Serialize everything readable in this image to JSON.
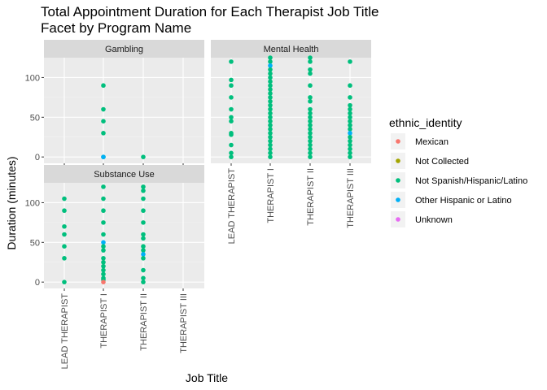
{
  "chart_data": {
    "type": "scatter",
    "title_line1": "Total Appointment Duration for Each Therapist Job Title",
    "title_line2": "Facet by Program Name",
    "xlabel": "Job Title",
    "ylabel": "Duration (minutes)",
    "categories": [
      "LEAD THERAPIST",
      "THERAPIST I",
      "THERAPIST II",
      "THERAPIST III"
    ],
    "y_ticks": [
      0,
      50,
      100
    ],
    "ylim": [
      -8,
      125
    ],
    "grid": true,
    "legend": {
      "title": "ethnic_identity",
      "placement": "right",
      "entries": [
        {
          "label": "Mexican",
          "color": "#F8766D"
        },
        {
          "label": "Not Collected",
          "color": "#A3A500"
        },
        {
          "label": "Not Spanish/Hispanic/Latino",
          "color": "#00BF7D"
        },
        {
          "label": "Other Hispanic or Latino",
          "color": "#00B0F6"
        },
        {
          "label": "Unknown",
          "color": "#E76BF3"
        }
      ]
    },
    "facets": [
      {
        "name": "Gambling",
        "points": [
          {
            "x": "THERAPIST I",
            "y": 90,
            "group": "Not Spanish/Hispanic/Latino"
          },
          {
            "x": "THERAPIST I",
            "y": 60,
            "group": "Not Spanish/Hispanic/Latino"
          },
          {
            "x": "THERAPIST I",
            "y": 45,
            "group": "Not Spanish/Hispanic/Latino"
          },
          {
            "x": "THERAPIST I",
            "y": 30,
            "group": "Not Spanish/Hispanic/Latino"
          },
          {
            "x": "THERAPIST I",
            "y": 0,
            "group": "Not Spanish/Hispanic/Latino"
          },
          {
            "x": "THERAPIST I",
            "y": 0,
            "group": "Other Hispanic or Latino"
          },
          {
            "x": "THERAPIST II",
            "y": 0,
            "group": "Not Spanish/Hispanic/Latino"
          }
        ]
      },
      {
        "name": "Mental Health",
        "points": [
          {
            "x": "LEAD THERAPIST",
            "y": 120,
            "group": "Not Spanish/Hispanic/Latino"
          },
          {
            "x": "LEAD THERAPIST",
            "y": 97,
            "group": "Not Spanish/Hispanic/Latino"
          },
          {
            "x": "LEAD THERAPIST",
            "y": 90,
            "group": "Not Spanish/Hispanic/Latino"
          },
          {
            "x": "LEAD THERAPIST",
            "y": 75,
            "group": "Not Spanish/Hispanic/Latino"
          },
          {
            "x": "LEAD THERAPIST",
            "y": 60,
            "group": "Not Spanish/Hispanic/Latino"
          },
          {
            "x": "LEAD THERAPIST",
            "y": 50,
            "group": "Not Spanish/Hispanic/Latino"
          },
          {
            "x": "LEAD THERAPIST",
            "y": 45,
            "group": "Not Spanish/Hispanic/Latino"
          },
          {
            "x": "LEAD THERAPIST",
            "y": 30,
            "group": "Not Spanish/Hispanic/Latino"
          },
          {
            "x": "LEAD THERAPIST",
            "y": 28,
            "group": "Not Spanish/Hispanic/Latino"
          },
          {
            "x": "LEAD THERAPIST",
            "y": 15,
            "group": "Not Spanish/Hispanic/Latino"
          },
          {
            "x": "LEAD THERAPIST",
            "y": 5,
            "group": "Not Spanish/Hispanic/Latino"
          },
          {
            "x": "LEAD THERAPIST",
            "y": 0,
            "group": "Not Spanish/Hispanic/Latino"
          },
          {
            "x": "THERAPIST I",
            "y": 125,
            "group": "Not Spanish/Hispanic/Latino"
          },
          {
            "x": "THERAPIST I",
            "y": 120,
            "group": "Not Spanish/Hispanic/Latino"
          },
          {
            "x": "THERAPIST I",
            "y": 115,
            "group": "Other Hispanic or Latino"
          },
          {
            "x": "THERAPIST I",
            "y": 110,
            "group": "Not Spanish/Hispanic/Latino"
          },
          {
            "x": "THERAPIST I",
            "y": 105,
            "group": "Not Spanish/Hispanic/Latino"
          },
          {
            "x": "THERAPIST I",
            "y": 100,
            "group": "Not Spanish/Hispanic/Latino"
          },
          {
            "x": "THERAPIST I",
            "y": 95,
            "group": "Not Spanish/Hispanic/Latino"
          },
          {
            "x": "THERAPIST I",
            "y": 90,
            "group": "Not Spanish/Hispanic/Latino"
          },
          {
            "x": "THERAPIST I",
            "y": 85,
            "group": "Not Spanish/Hispanic/Latino"
          },
          {
            "x": "THERAPIST I",
            "y": 80,
            "group": "Not Spanish/Hispanic/Latino"
          },
          {
            "x": "THERAPIST I",
            "y": 75,
            "group": "Not Spanish/Hispanic/Latino"
          },
          {
            "x": "THERAPIST I",
            "y": 70,
            "group": "Not Spanish/Hispanic/Latino"
          },
          {
            "x": "THERAPIST I",
            "y": 65,
            "group": "Not Spanish/Hispanic/Latino"
          },
          {
            "x": "THERAPIST I",
            "y": 60,
            "group": "Not Spanish/Hispanic/Latino"
          },
          {
            "x": "THERAPIST I",
            "y": 55,
            "group": "Not Spanish/Hispanic/Latino"
          },
          {
            "x": "THERAPIST I",
            "y": 50,
            "group": "Not Spanish/Hispanic/Latino"
          },
          {
            "x": "THERAPIST I",
            "y": 45,
            "group": "Not Spanish/Hispanic/Latino"
          },
          {
            "x": "THERAPIST I",
            "y": 40,
            "group": "Not Spanish/Hispanic/Latino"
          },
          {
            "x": "THERAPIST I",
            "y": 35,
            "group": "Not Spanish/Hispanic/Latino"
          },
          {
            "x": "THERAPIST I",
            "y": 30,
            "group": "Not Spanish/Hispanic/Latino"
          },
          {
            "x": "THERAPIST I",
            "y": 25,
            "group": "Not Spanish/Hispanic/Latino"
          },
          {
            "x": "THERAPIST I",
            "y": 20,
            "group": "Not Spanish/Hispanic/Latino"
          },
          {
            "x": "THERAPIST I",
            "y": 15,
            "group": "Not Spanish/Hispanic/Latino"
          },
          {
            "x": "THERAPIST I",
            "y": 10,
            "group": "Not Spanish/Hispanic/Latino"
          },
          {
            "x": "THERAPIST I",
            "y": 5,
            "group": "Not Spanish/Hispanic/Latino"
          },
          {
            "x": "THERAPIST I",
            "y": 0,
            "group": "Not Spanish/Hispanic/Latino"
          },
          {
            "x": "THERAPIST II",
            "y": 125,
            "group": "Not Spanish/Hispanic/Latino"
          },
          {
            "x": "THERAPIST II",
            "y": 120,
            "group": "Not Spanish/Hispanic/Latino"
          },
          {
            "x": "THERAPIST II",
            "y": 110,
            "group": "Not Spanish/Hispanic/Latino"
          },
          {
            "x": "THERAPIST II",
            "y": 105,
            "group": "Not Spanish/Hispanic/Latino"
          },
          {
            "x": "THERAPIST II",
            "y": 90,
            "group": "Not Spanish/Hispanic/Latino"
          },
          {
            "x": "THERAPIST II",
            "y": 75,
            "group": "Not Spanish/Hispanic/Latino"
          },
          {
            "x": "THERAPIST II",
            "y": 70,
            "group": "Not Spanish/Hispanic/Latino"
          },
          {
            "x": "THERAPIST II",
            "y": 60,
            "group": "Not Spanish/Hispanic/Latino"
          },
          {
            "x": "THERAPIST II",
            "y": 55,
            "group": "Not Spanish/Hispanic/Latino"
          },
          {
            "x": "THERAPIST II",
            "y": 50,
            "group": "Not Spanish/Hispanic/Latino"
          },
          {
            "x": "THERAPIST II",
            "y": 45,
            "group": "Not Spanish/Hispanic/Latino"
          },
          {
            "x": "THERAPIST II",
            "y": 40,
            "group": "Not Spanish/Hispanic/Latino"
          },
          {
            "x": "THERAPIST II",
            "y": 35,
            "group": "Not Spanish/Hispanic/Latino"
          },
          {
            "x": "THERAPIST II",
            "y": 30,
            "group": "Not Spanish/Hispanic/Latino"
          },
          {
            "x": "THERAPIST II",
            "y": 25,
            "group": "Not Spanish/Hispanic/Latino"
          },
          {
            "x": "THERAPIST II",
            "y": 20,
            "group": "Not Spanish/Hispanic/Latino"
          },
          {
            "x": "THERAPIST II",
            "y": 15,
            "group": "Not Spanish/Hispanic/Latino"
          },
          {
            "x": "THERAPIST II",
            "y": 10,
            "group": "Not Spanish/Hispanic/Latino"
          },
          {
            "x": "THERAPIST II",
            "y": 5,
            "group": "Not Spanish/Hispanic/Latino"
          },
          {
            "x": "THERAPIST II",
            "y": 0,
            "group": "Not Spanish/Hispanic/Latino"
          },
          {
            "x": "THERAPIST III",
            "y": 120,
            "group": "Not Spanish/Hispanic/Latino"
          },
          {
            "x": "THERAPIST III",
            "y": 90,
            "group": "Not Spanish/Hispanic/Latino"
          },
          {
            "x": "THERAPIST III",
            "y": 75,
            "group": "Not Spanish/Hispanic/Latino"
          },
          {
            "x": "THERAPIST III",
            "y": 65,
            "group": "Not Spanish/Hispanic/Latino"
          },
          {
            "x": "THERAPIST III",
            "y": 60,
            "group": "Not Spanish/Hispanic/Latino"
          },
          {
            "x": "THERAPIST III",
            "y": 55,
            "group": "Not Spanish/Hispanic/Latino"
          },
          {
            "x": "THERAPIST III",
            "y": 50,
            "group": "Not Spanish/Hispanic/Latino"
          },
          {
            "x": "THERAPIST III",
            "y": 45,
            "group": "Not Spanish/Hispanic/Latino"
          },
          {
            "x": "THERAPIST III",
            "y": 40,
            "group": "Not Spanish/Hispanic/Latino"
          },
          {
            "x": "THERAPIST III",
            "y": 35,
            "group": "Not Spanish/Hispanic/Latino"
          },
          {
            "x": "THERAPIST III",
            "y": 30,
            "group": "Other Hispanic or Latino"
          },
          {
            "x": "THERAPIST III",
            "y": 25,
            "group": "Not Spanish/Hispanic/Latino"
          },
          {
            "x": "THERAPIST III",
            "y": 20,
            "group": "Not Spanish/Hispanic/Latino"
          },
          {
            "x": "THERAPIST III",
            "y": 15,
            "group": "Not Spanish/Hispanic/Latino"
          },
          {
            "x": "THERAPIST III",
            "y": 10,
            "group": "Not Spanish/Hispanic/Latino"
          },
          {
            "x": "THERAPIST III",
            "y": 5,
            "group": "Not Spanish/Hispanic/Latino"
          },
          {
            "x": "THERAPIST III",
            "y": 0,
            "group": "Not Spanish/Hispanic/Latino"
          }
        ]
      },
      {
        "name": "Substance Use",
        "points": [
          {
            "x": "LEAD THERAPIST",
            "y": 105,
            "group": "Not Spanish/Hispanic/Latino"
          },
          {
            "x": "LEAD THERAPIST",
            "y": 90,
            "group": "Not Spanish/Hispanic/Latino"
          },
          {
            "x": "LEAD THERAPIST",
            "y": 70,
            "group": "Not Spanish/Hispanic/Latino"
          },
          {
            "x": "LEAD THERAPIST",
            "y": 60,
            "group": "Not Spanish/Hispanic/Latino"
          },
          {
            "x": "LEAD THERAPIST",
            "y": 45,
            "group": "Not Spanish/Hispanic/Latino"
          },
          {
            "x": "LEAD THERAPIST",
            "y": 30,
            "group": "Not Spanish/Hispanic/Latino"
          },
          {
            "x": "LEAD THERAPIST",
            "y": 0,
            "group": "Not Spanish/Hispanic/Latino"
          },
          {
            "x": "THERAPIST I",
            "y": 120,
            "group": "Not Spanish/Hispanic/Latino"
          },
          {
            "x": "THERAPIST I",
            "y": 105,
            "group": "Not Spanish/Hispanic/Latino"
          },
          {
            "x": "THERAPIST I",
            "y": 90,
            "group": "Not Spanish/Hispanic/Latino"
          },
          {
            "x": "THERAPIST I",
            "y": 75,
            "group": "Not Spanish/Hispanic/Latino"
          },
          {
            "x": "THERAPIST I",
            "y": 60,
            "group": "Not Spanish/Hispanic/Latino"
          },
          {
            "x": "THERAPIST I",
            "y": 50,
            "group": "Other Hispanic or Latino"
          },
          {
            "x": "THERAPIST I",
            "y": 45,
            "group": "Not Spanish/Hispanic/Latino"
          },
          {
            "x": "THERAPIST I",
            "y": 40,
            "group": "Not Spanish/Hispanic/Latino"
          },
          {
            "x": "THERAPIST I",
            "y": 30,
            "group": "Not Spanish/Hispanic/Latino"
          },
          {
            "x": "THERAPIST I",
            "y": 25,
            "group": "Not Spanish/Hispanic/Latino"
          },
          {
            "x": "THERAPIST I",
            "y": 20,
            "group": "Not Spanish/Hispanic/Latino"
          },
          {
            "x": "THERAPIST I",
            "y": 15,
            "group": "Not Spanish/Hispanic/Latino"
          },
          {
            "x": "THERAPIST I",
            "y": 10,
            "group": "Not Spanish/Hispanic/Latino"
          },
          {
            "x": "THERAPIST I",
            "y": 5,
            "group": "Not Spanish/Hispanic/Latino"
          },
          {
            "x": "THERAPIST I",
            "y": 3,
            "group": "Not Spanish/Hispanic/Latino"
          },
          {
            "x": "THERAPIST I",
            "y": 0,
            "group": "Mexican"
          },
          {
            "x": "THERAPIST II",
            "y": 120,
            "group": "Not Spanish/Hispanic/Latino"
          },
          {
            "x": "THERAPIST II",
            "y": 115,
            "group": "Not Spanish/Hispanic/Latino"
          },
          {
            "x": "THERAPIST II",
            "y": 105,
            "group": "Not Spanish/Hispanic/Latino"
          },
          {
            "x": "THERAPIST II",
            "y": 90,
            "group": "Not Spanish/Hispanic/Latino"
          },
          {
            "x": "THERAPIST II",
            "y": 75,
            "group": "Not Spanish/Hispanic/Latino"
          },
          {
            "x": "THERAPIST II",
            "y": 60,
            "group": "Not Spanish/Hispanic/Latino"
          },
          {
            "x": "THERAPIST II",
            "y": 55,
            "group": "Not Spanish/Hispanic/Latino"
          },
          {
            "x": "THERAPIST II",
            "y": 45,
            "group": "Not Spanish/Hispanic/Latino"
          },
          {
            "x": "THERAPIST II",
            "y": 40,
            "group": "Not Spanish/Hispanic/Latino"
          },
          {
            "x": "THERAPIST II",
            "y": 35,
            "group": "Other Hispanic or Latino"
          },
          {
            "x": "THERAPIST II",
            "y": 30,
            "group": "Not Spanish/Hispanic/Latino"
          },
          {
            "x": "THERAPIST II",
            "y": 15,
            "group": "Not Spanish/Hispanic/Latino"
          },
          {
            "x": "THERAPIST II",
            "y": 5,
            "group": "Not Spanish/Hispanic/Latino"
          },
          {
            "x": "THERAPIST II",
            "y": 0,
            "group": "Not Spanish/Hispanic/Latino"
          }
        ]
      }
    ]
  }
}
